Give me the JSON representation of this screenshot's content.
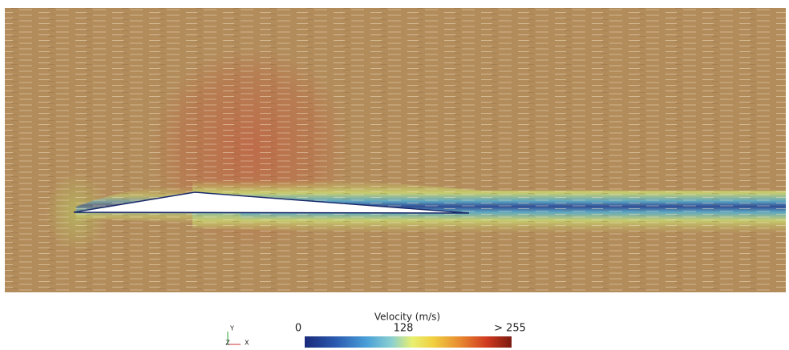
{
  "colorbar": {
    "title": "Velocity (m/s)",
    "labels": [
      "0",
      "128",
      "> 255"
    ]
  },
  "axes": {
    "y": "Y",
    "z": "Z",
    "x": "X"
  }
}
